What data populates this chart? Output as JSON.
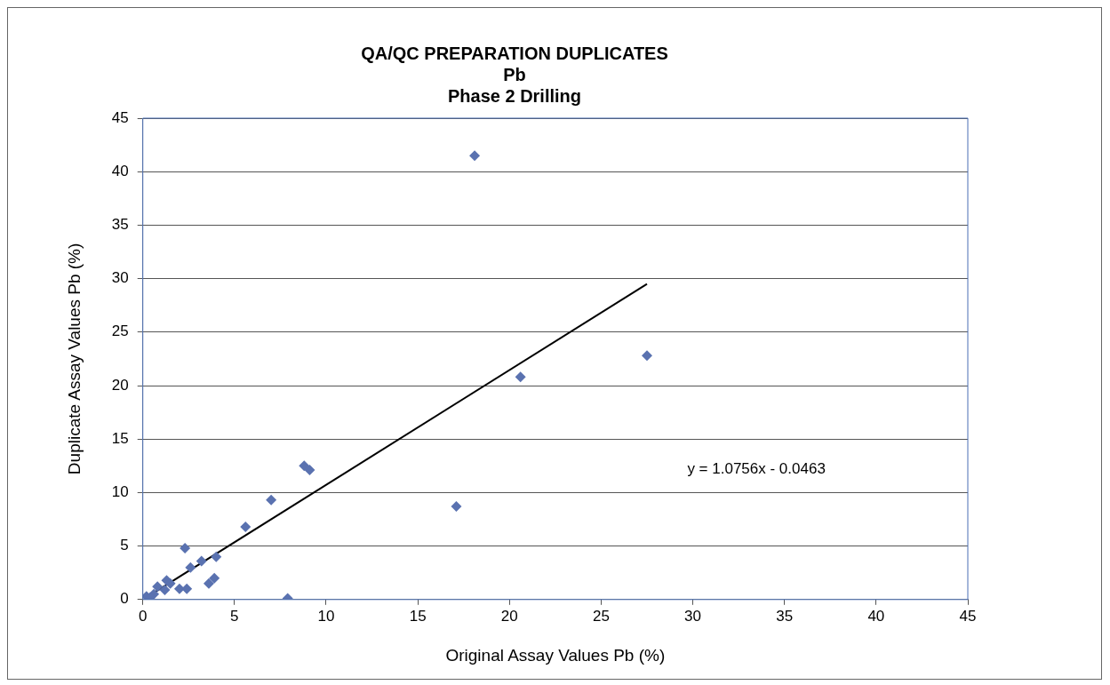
{
  "chart_data": {
    "type": "scatter",
    "title": "QA/QC PREPARATION DUPLICATES\nPb\nPhase 2 Drilling",
    "xlabel": "Original Assay Values Pb (%)",
    "ylabel": "Duplicate Assay Values Pb (%)",
    "series": [
      {
        "type": "scatter",
        "color": "#5a72b0",
        "marker": "diamond",
        "x": [
          18.1,
          27.5,
          20.6,
          17.1,
          8.8,
          9.1,
          7.0,
          5.6,
          7.9,
          4.0,
          3.2,
          2.6,
          2.3,
          3.9,
          3.6,
          2.0,
          2.4,
          1.5,
          1.3,
          0.8,
          0.2,
          0.6,
          1.2,
          0.4
        ],
        "values": [
          41.5,
          22.8,
          20.8,
          8.7,
          12.5,
          12.1,
          9.3,
          6.8,
          0.1,
          4.0,
          3.6,
          3.0,
          4.8,
          2.0,
          1.5,
          1.0,
          1.0,
          1.5,
          1.8,
          1.2,
          0.3,
          0.5,
          0.9,
          0.2
        ]
      },
      {
        "type": "line",
        "color": "#000000",
        "marker": "none",
        "x": [
          0.1,
          27.5
        ],
        "values": [
          0.1,
          29.5
        ]
      }
    ],
    "xlim": [
      0,
      45
    ],
    "xticks": [
      0,
      5,
      10,
      15,
      20,
      25,
      30,
      35,
      40,
      45
    ],
    "ylim": [
      0,
      45
    ],
    "yticks": [
      0,
      5,
      10,
      15,
      20,
      25,
      30,
      35,
      40,
      45
    ],
    "grid": "y",
    "legend": false,
    "annotations": [
      "y = 1.0756x - 0.0463"
    ]
  }
}
